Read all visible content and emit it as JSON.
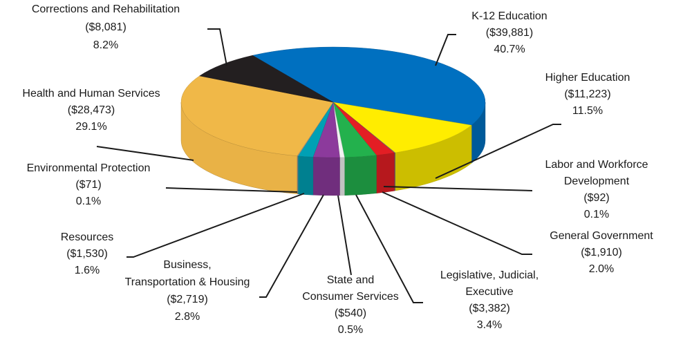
{
  "chart_data": {
    "type": "pie",
    "categories": [
      "K-12 Education",
      "Higher Education",
      "Labor and Workforce\nDevelopment",
      "General Government",
      "Legislative, Judicial,\nExecutive",
      "State and\nConsumer Services",
      "Business,\nTransportation & Housing",
      "Resources",
      "Environmental Protection",
      "Health and Human Services",
      "Corrections and Rehabilitation"
    ],
    "values": [
      40.7,
      11.5,
      0.1,
      2.0,
      3.4,
      0.5,
      2.8,
      1.6,
      0.1,
      29.1,
      8.2
    ],
    "value_labels": [
      "40.7%",
      "11.5%",
      "0.1%",
      "2.0%",
      "3.4%",
      "0.5%",
      "2.8%",
      "1.6%",
      "0.1%",
      "29.1%",
      "8.2%"
    ],
    "amounts": [
      39881,
      11223,
      92,
      1910,
      3382,
      540,
      2719,
      1530,
      71,
      28473,
      8081
    ],
    "amount_labels": [
      "($39,881)",
      "($11,223)",
      "($92)",
      "($1,910)",
      "($3,382)",
      "($540)",
      "($2,719)",
      "($1,530)",
      "($71)",
      "($28,473)",
      "($8,081)"
    ],
    "colors": [
      "#0070c0",
      "#ffed00",
      "#7f7f7f",
      "#e31e24",
      "#23b14d",
      "#f2f2f2",
      "#8c3a9c",
      "#00a0b4",
      "#9a9a9a",
      "#f0b848",
      "#231f20"
    ]
  }
}
